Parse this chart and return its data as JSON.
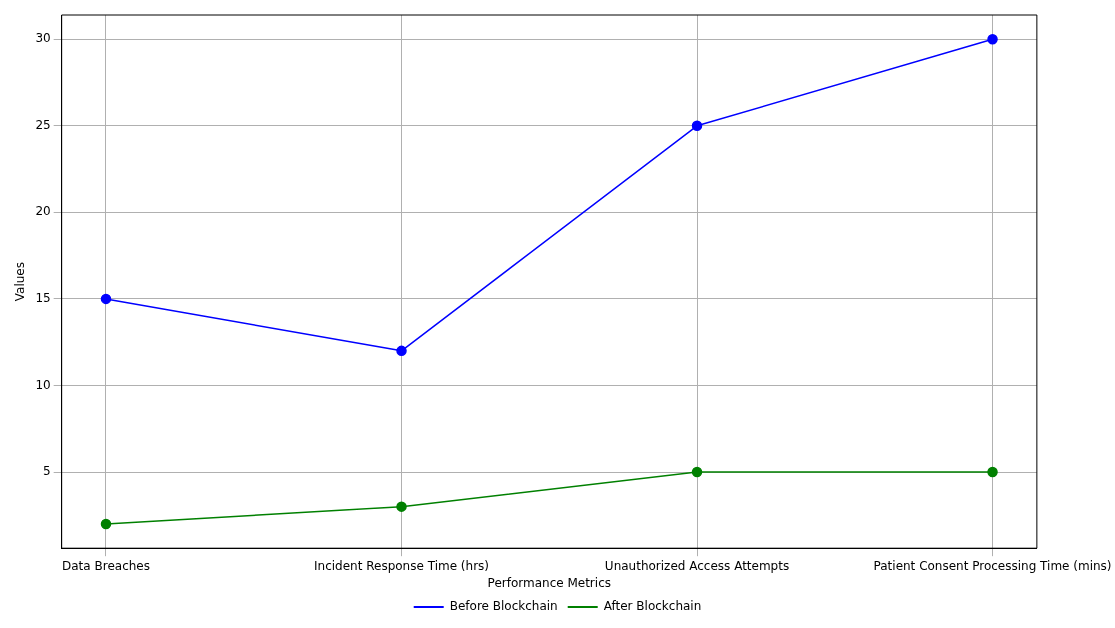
{
  "chart_data": {
    "type": "line",
    "xlabel": "Performance Metrics",
    "ylabel": "Values",
    "categories": [
      "Data Breaches",
      "Incident Response Time (hrs)",
      "Unauthorized Access Attempts",
      "Patient Consent Processing Time (mins)"
    ],
    "series": [
      {
        "name": "Before Blockchain",
        "color": "#0000ff",
        "values": [
          15,
          12,
          25,
          30
        ]
      },
      {
        "name": "After Blockchain",
        "color": "#008000",
        "values": [
          2,
          3,
          5,
          5
        ]
      }
    ],
    "ylim": [
      0.6,
      31.4
    ],
    "yticks": [
      5,
      10,
      15,
      20,
      25,
      30
    ],
    "grid": true,
    "legend": "bottom",
    "marker": "circle",
    "line_style": "solid"
  }
}
